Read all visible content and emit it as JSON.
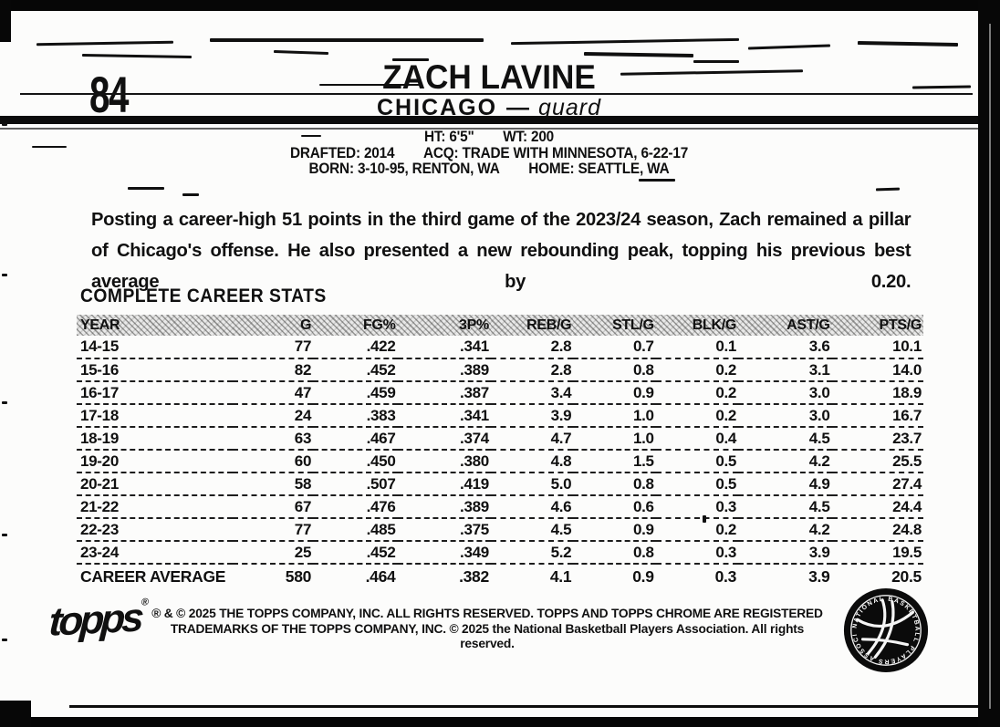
{
  "card": {
    "number": "84",
    "player_name": "ZACH LAVINE",
    "team": "CHICAGO",
    "divider": "—",
    "position": "guard",
    "bio_lines": [
      {
        "left": "HT: 6'5\"",
        "right": "WT: 200"
      },
      {
        "left": "DRAFTED: 2014",
        "right": "ACQ: TRADE WITH MINNESOTA, 6-22-17"
      },
      {
        "left": "BORN: 3-10-95, RENTON, WA",
        "right": "HOME: SEATTLE, WA"
      }
    ],
    "blurb": "Posting a career-high 51 points in the third game of the 2023/24 season, Zach remained a pillar of Chicago's offense. He also presented a new rebounding peak, topping his previous best average by 0.20.",
    "stats_title": "COMPLETE CAREER STATS"
  },
  "stats_table": {
    "columns": [
      "YEAR",
      "G",
      "FG%",
      "3P%",
      "REB/G",
      "STL/G",
      "BLK/G",
      "AST/G",
      "PTS/G"
    ],
    "rows": [
      [
        "14-15",
        "77",
        ".422",
        ".341",
        "2.8",
        "0.7",
        "0.1",
        "3.6",
        "10.1"
      ],
      [
        "15-16",
        "82",
        ".452",
        ".389",
        "2.8",
        "0.8",
        "0.2",
        "3.1",
        "14.0"
      ],
      [
        "16-17",
        "47",
        ".459",
        ".387",
        "3.4",
        "0.9",
        "0.2",
        "3.0",
        "18.9"
      ],
      [
        "17-18",
        "24",
        ".383",
        ".341",
        "3.9",
        "1.0",
        "0.2",
        "3.0",
        "16.7"
      ],
      [
        "18-19",
        "63",
        ".467",
        ".374",
        "4.7",
        "1.0",
        "0.4",
        "4.5",
        "23.7"
      ],
      [
        "19-20",
        "60",
        ".450",
        ".380",
        "4.8",
        "1.5",
        "0.5",
        "4.2",
        "25.5"
      ],
      [
        "20-21",
        "58",
        ".507",
        ".419",
        "5.0",
        "0.8",
        "0.5",
        "4.9",
        "27.4"
      ],
      [
        "21-22",
        "67",
        ".476",
        ".389",
        "4.6",
        "0.6",
        "0.3",
        "4.5",
        "24.4"
      ],
      [
        "22-23",
        "77",
        ".485",
        ".375",
        "4.5",
        "0.9",
        "0.2",
        "4.2",
        "24.8"
      ],
      [
        "23-24",
        "25",
        ".452",
        ".349",
        "5.2",
        "0.8",
        "0.3",
        "3.9",
        "19.5"
      ]
    ],
    "footer_row": [
      "CAREER AVERAGE",
      "580",
      ".464",
      ".382",
      "4.1",
      "0.9",
      "0.3",
      "3.9",
      "20.5"
    ]
  },
  "footer": {
    "topps_logo_text": "topps",
    "topps_reg_mark": "®",
    "copyright_line1": "® & © 2025 THE TOPPS COMPANY, INC. ALL RIGHTS RESERVED. TOPPS AND TOPPS CHROME ARE REGISTERED",
    "copyright_line2": "TRADEMARKS OF THE TOPPS COMPANY, INC. © 2025 the National Basketball Players Association. All rights reserved.",
    "nbpa_seal_text": "NATIONAL BASKETBALL PLAYERS ASSOCIATION"
  },
  "colors": {
    "ink": "#101010",
    "paper": "#fcfcfb",
    "frame": "#060606"
  }
}
